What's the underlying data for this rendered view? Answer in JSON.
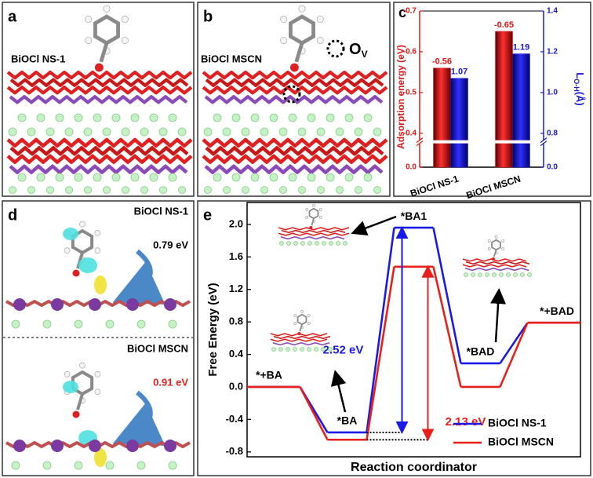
{
  "panels": {
    "a": {
      "label": "a",
      "caption": "BiOCl NS-1"
    },
    "b": {
      "label": "b",
      "caption": "BiOCl MSCN",
      "vacancy": "O",
      "vacancy_sub": "V"
    },
    "c": {
      "label": "c"
    },
    "d": {
      "label": "d",
      "top_caption": "BiOCl NS-1",
      "top_value": "0.79 eV",
      "bottom_caption": "BiOCl MSCN",
      "bottom_value": "0.91 eV"
    },
    "e": {
      "label": "e"
    }
  },
  "chart_data": [
    {
      "type": "bar",
      "categories": [
        "BiOCl NS-1",
        "BiOCl MSCN"
      ],
      "series": [
        {
          "color": "#e01515",
          "values": [
            -0.56,
            -0.65
          ],
          "axis": "y"
        },
        {
          "color": "#1818d8",
          "values": [
            1.07,
            1.19
          ],
          "axis": "y2"
        }
      ],
      "ylabel": "Adsorption energy (eV)",
      "y2label": "L",
      "y2label_sub": "O-H",
      "y2label_unit": "(Å)",
      "ylim": [
        0,
        -0.7
      ],
      "yticks": [
        {
          "value": 0,
          "label": "0.0"
        },
        -0.4,
        -0.5,
        -0.6,
        -0.7
      ],
      "y2lim": [
        0,
        1.4
      ],
      "y2ticks": [
        {
          "value": 0,
          "label": "0.0"
        },
        0.8,
        {
          "value": 1,
          "label": "1.0"
        },
        1.2,
        1.4
      ],
      "axis_break": true
    },
    {
      "type": "line",
      "categories": [
        "*+BA",
        "*BA",
        "*BA1",
        "*BAD",
        "*+BAD"
      ],
      "series": [
        {
          "name": "BiOCl NS-1",
          "color": "#1a1ae6",
          "values": [
            0,
            -0.56,
            1.96,
            0.29,
            0.79
          ],
          "barrier": 2.52,
          "barrier_label": "2.52 eV"
        },
        {
          "name": "BiOCl MSCN",
          "color": "#e8201c",
          "values": [
            0,
            -0.65,
            1.48,
            0.0,
            0.79
          ],
          "barrier": 2.13,
          "barrier_label": "2.13 eV"
        }
      ],
      "xlabel": "Reaction coordinator",
      "ylabel": "Free Energy (eV)",
      "ylim": [
        -0.86,
        2.27
      ],
      "yticks": [
        -0.8,
        -0.4,
        {
          "value": 0,
          "label": "0.0"
        },
        0.4,
        0.8,
        1.2,
        1.6,
        {
          "value": 2,
          "label": "2.0"
        }
      ],
      "legend": "lower right"
    }
  ]
}
